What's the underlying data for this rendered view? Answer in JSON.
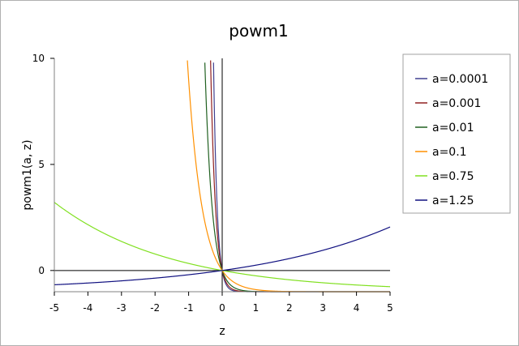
{
  "chart_data": {
    "type": "line",
    "title": "powm1",
    "xlabel": "z",
    "ylabel": "powm1(a, z)",
    "xlim": [
      -5,
      5
    ],
    "ylim": [
      -1,
      10
    ],
    "xticks": [
      "-5",
      "-4",
      "-3",
      "-2",
      "-1",
      "0",
      "1",
      "2",
      "3",
      "4",
      "5"
    ],
    "yticks": [
      "0",
      "5",
      "10"
    ],
    "grid": false,
    "legend_position": "right",
    "function": "a^z - 1",
    "series": [
      {
        "name": "a=0.0001",
        "a": 0.0001,
        "color": "#404090"
      },
      {
        "name": "a=0.001",
        "a": 0.001,
        "color": "#902020"
      },
      {
        "name": "a=0.01",
        "a": 0.01,
        "color": "#206020"
      },
      {
        "name": "a=0.1",
        "a": 0.1,
        "color": "#ff9000"
      },
      {
        "name": "a=0.75",
        "a": 0.75,
        "color": "#80e020"
      },
      {
        "name": "a=1.25",
        "a": 1.25,
        "color": "#101080"
      }
    ]
  }
}
